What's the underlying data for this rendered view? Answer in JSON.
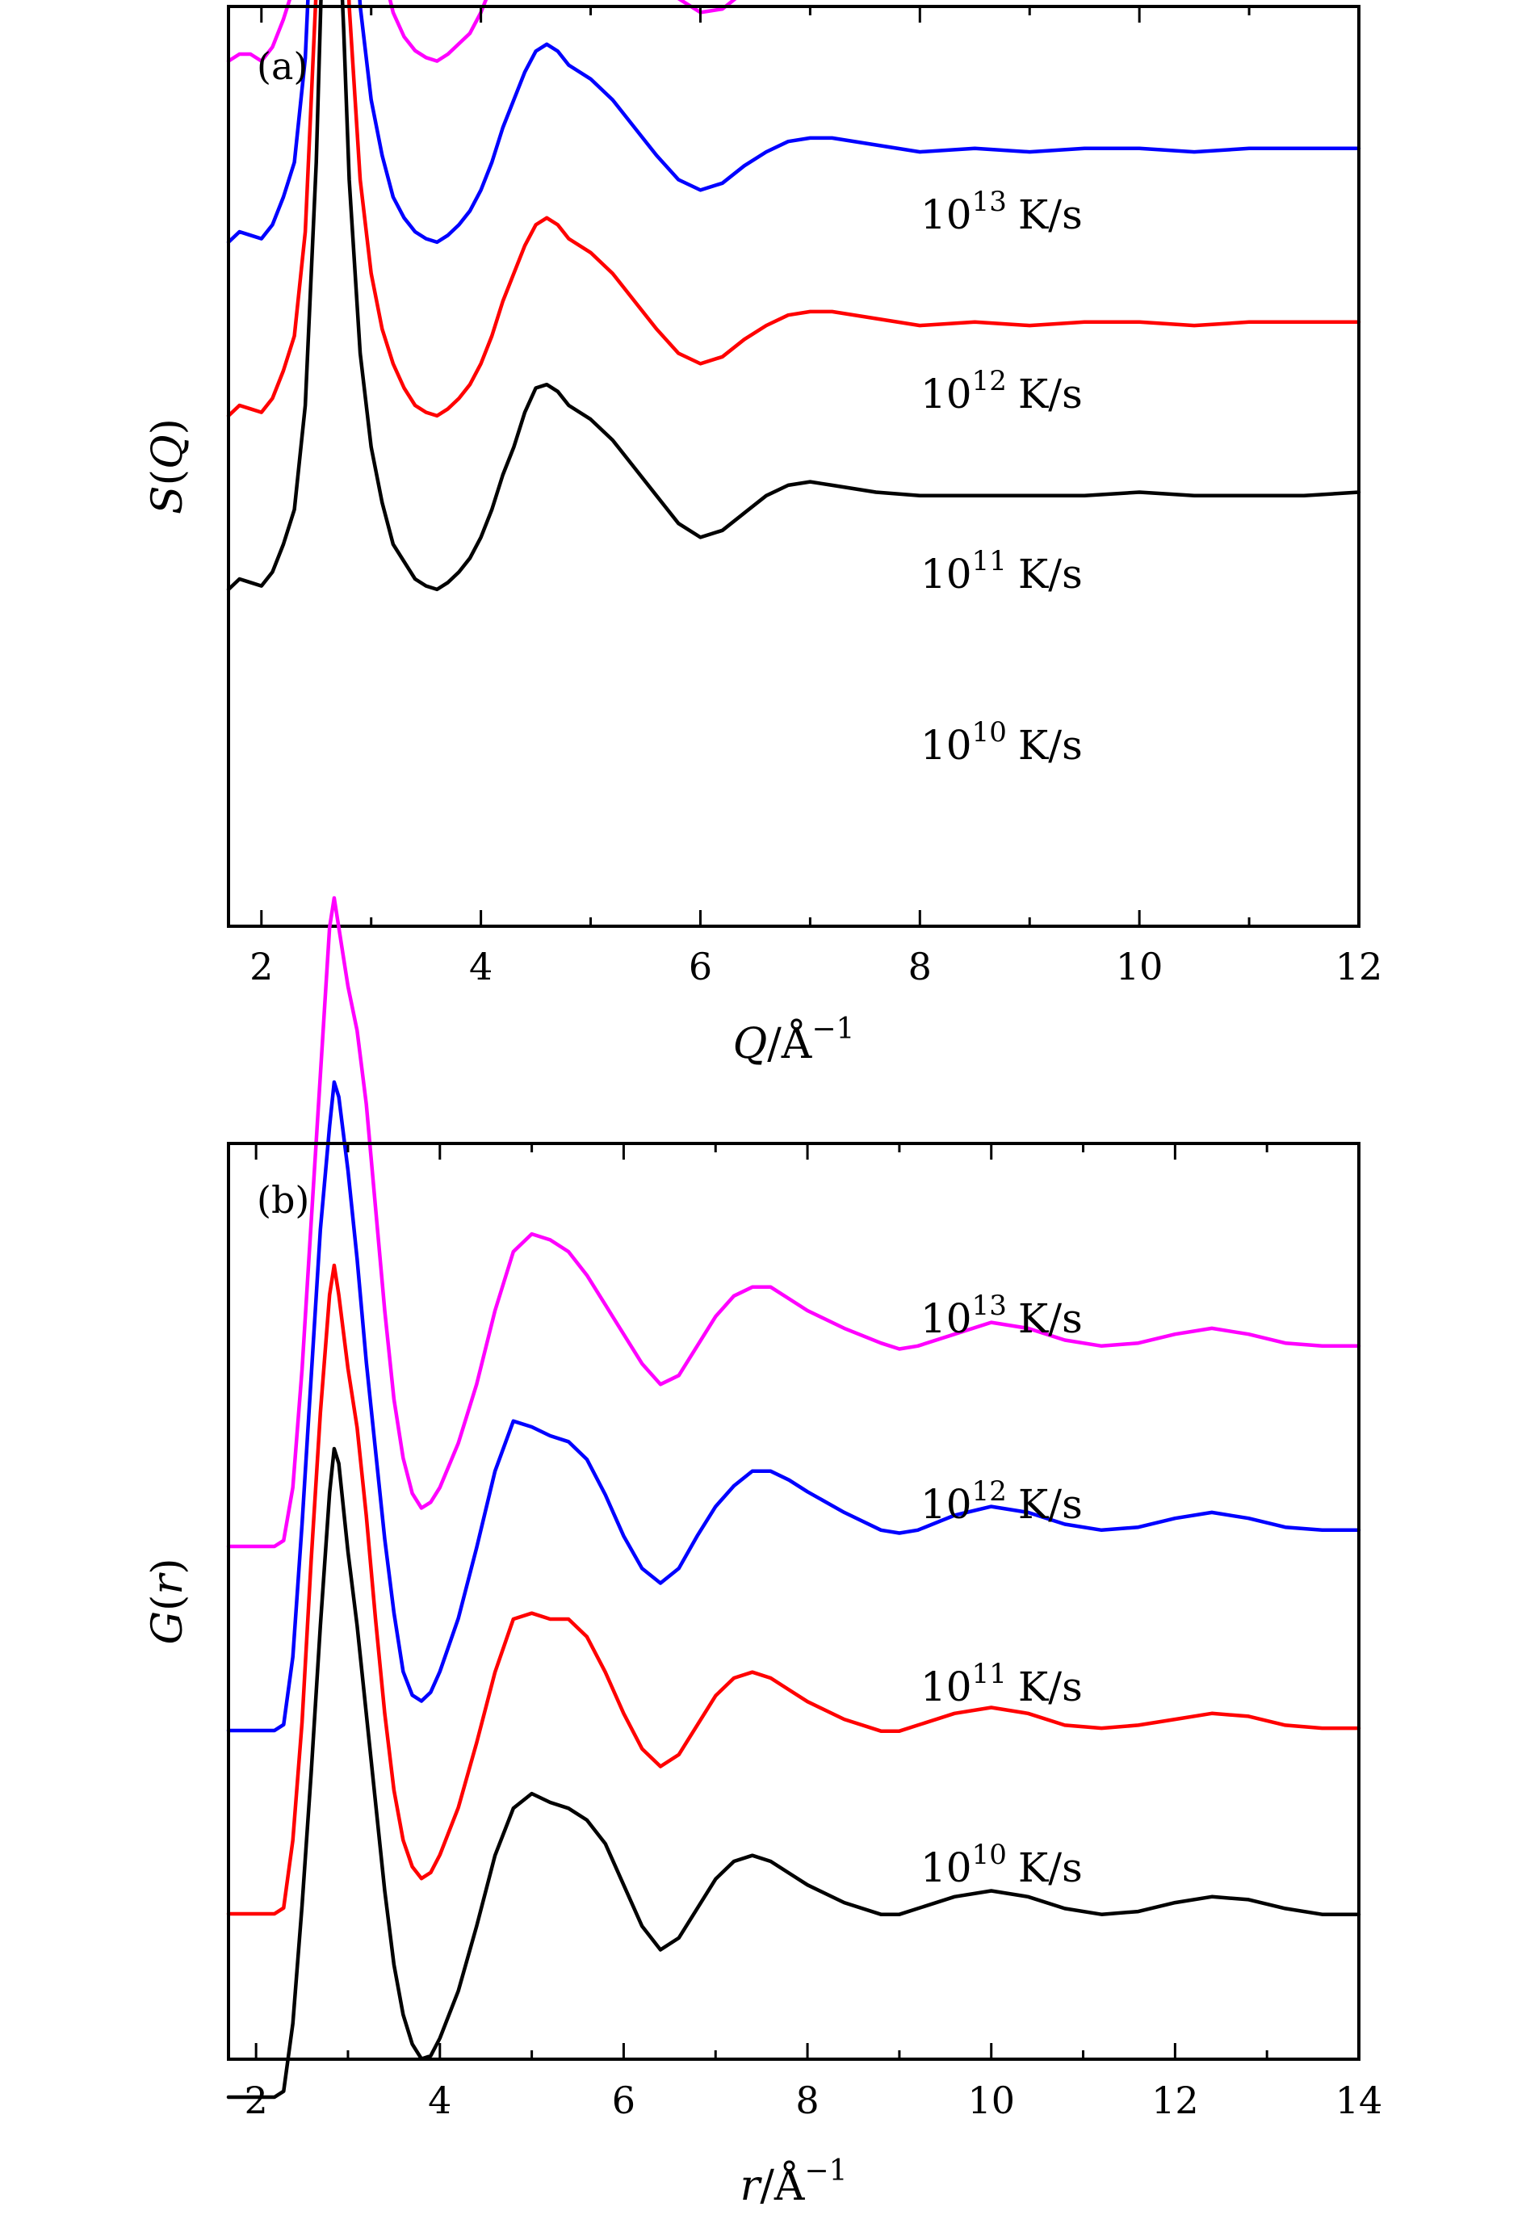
{
  "chart_data": [
    {
      "type": "line",
      "panel_label": "(a)",
      "xlabel": {
        "var": "Q",
        "unit": "/Å",
        "exp": "−1"
      },
      "ylabel": {
        "func": "S",
        "var": "Q"
      },
      "xlim": [
        1.7,
        12
      ],
      "x_ticks": [
        2,
        4,
        6,
        8,
        10,
        12
      ],
      "x_minor_step": 1,
      "y_ticks_visible": false,
      "grid": false,
      "stacked_offset": true,
      "series": [
        {
          "name": "10¹³ K/s",
          "label_base": "10",
          "label_exp": "13",
          "label_unit": "K/s",
          "color": "#ff00ff",
          "x": [
            1.7,
            1.8,
            1.9,
            2.0,
            2.1,
            2.2,
            2.3,
            2.4,
            2.5,
            2.55,
            2.6,
            2.65,
            2.7,
            2.75,
            2.8,
            2.9,
            3.0,
            3.1,
            3.2,
            3.3,
            3.4,
            3.5,
            3.6,
            3.7,
            3.8,
            3.9,
            4.0,
            4.1,
            4.2,
            4.3,
            4.4,
            4.5,
            4.6,
            4.7,
            4.8,
            5.0,
            5.2,
            5.4,
            5.6,
            5.8,
            6.0,
            6.2,
            6.4,
            6.6,
            6.8,
            7.0,
            7.2,
            7.6,
            8.0,
            8.5,
            9.0,
            9.5,
            10.0,
            10.5,
            11.0,
            11.5,
            12.0
          ],
          "y": [
            0.98,
            1.0,
            1.0,
            0.98,
            1.02,
            1.1,
            1.2,
            1.5,
            2.2,
            2.75,
            3.05,
            3.1,
            2.95,
            2.6,
            2.15,
            1.65,
            1.38,
            1.25,
            1.12,
            1.05,
            1.01,
            0.99,
            0.98,
            1.0,
            1.03,
            1.06,
            1.12,
            1.2,
            1.3,
            1.4,
            1.48,
            1.55,
            1.57,
            1.55,
            1.52,
            1.47,
            1.42,
            1.33,
            1.24,
            1.16,
            1.12,
            1.13,
            1.18,
            1.24,
            1.28,
            1.29,
            1.28,
            1.26,
            1.24,
            1.25,
            1.24,
            1.25,
            1.25,
            1.24,
            1.25,
            1.25,
            1.25
          ]
        },
        {
          "name": "10¹² K/s",
          "label_base": "10",
          "label_exp": "12",
          "label_unit": "K/s",
          "color": "#0000ff",
          "x": [
            1.7,
            1.8,
            1.9,
            2.0,
            2.1,
            2.2,
            2.3,
            2.4,
            2.5,
            2.55,
            2.6,
            2.65,
            2.7,
            2.75,
            2.8,
            2.9,
            3.0,
            3.1,
            3.2,
            3.3,
            3.4,
            3.5,
            3.6,
            3.7,
            3.8,
            3.9,
            4.0,
            4.1,
            4.2,
            4.3,
            4.4,
            4.5,
            4.6,
            4.7,
            4.8,
            5.0,
            5.2,
            5.4,
            5.6,
            5.8,
            6.0,
            6.2,
            6.4,
            6.6,
            6.8,
            7.0,
            7.2,
            7.6,
            8.0,
            8.5,
            9.0,
            9.5,
            10.0,
            10.5,
            11.0,
            11.5,
            12.0
          ],
          "y": [
            0.97,
            1.0,
            0.99,
            0.98,
            1.02,
            1.1,
            1.2,
            1.5,
            2.2,
            2.75,
            3.05,
            3.1,
            2.95,
            2.58,
            2.15,
            1.65,
            1.38,
            1.22,
            1.1,
            1.04,
            1.0,
            0.98,
            0.97,
            0.99,
            1.02,
            1.06,
            1.12,
            1.2,
            1.3,
            1.38,
            1.46,
            1.52,
            1.54,
            1.52,
            1.48,
            1.44,
            1.38,
            1.3,
            1.22,
            1.15,
            1.12,
            1.14,
            1.19,
            1.23,
            1.26,
            1.27,
            1.27,
            1.25,
            1.23,
            1.24,
            1.23,
            1.24,
            1.24,
            1.23,
            1.24,
            1.24,
            1.24
          ]
        },
        {
          "name": "10¹¹ K/s",
          "label_base": "10",
          "label_exp": "11",
          "label_unit": "K/s",
          "color": "#ff0000",
          "x": [
            1.7,
            1.8,
            1.9,
            2.0,
            2.1,
            2.2,
            2.3,
            2.4,
            2.5,
            2.55,
            2.6,
            2.65,
            2.7,
            2.75,
            2.8,
            2.9,
            3.0,
            3.1,
            3.2,
            3.3,
            3.4,
            3.5,
            3.6,
            3.7,
            3.8,
            3.9,
            4.0,
            4.1,
            4.2,
            4.3,
            4.4,
            4.5,
            4.6,
            4.7,
            4.8,
            5.0,
            5.2,
            5.4,
            5.6,
            5.8,
            6.0,
            6.2,
            6.4,
            6.6,
            6.8,
            7.0,
            7.2,
            7.6,
            8.0,
            8.5,
            9.0,
            9.5,
            10.0,
            10.5,
            11.0,
            11.5,
            12.0
          ],
          "y": [
            0.97,
            1.0,
            0.99,
            0.98,
            1.02,
            1.1,
            1.2,
            1.5,
            2.2,
            2.75,
            3.05,
            3.1,
            2.95,
            2.58,
            2.15,
            1.65,
            1.38,
            1.22,
            1.12,
            1.05,
            1.0,
            0.98,
            0.97,
            0.99,
            1.02,
            1.06,
            1.12,
            1.2,
            1.3,
            1.38,
            1.46,
            1.52,
            1.54,
            1.52,
            1.48,
            1.44,
            1.38,
            1.3,
            1.22,
            1.15,
            1.12,
            1.14,
            1.19,
            1.23,
            1.26,
            1.27,
            1.27,
            1.25,
            1.23,
            1.24,
            1.23,
            1.24,
            1.24,
            1.23,
            1.24,
            1.24,
            1.24
          ]
        },
        {
          "name": "10¹⁰ K/s",
          "label_base": "10",
          "label_exp": "10",
          "label_unit": "K/s",
          "color": "#000000",
          "x": [
            1.7,
            1.8,
            1.9,
            2.0,
            2.1,
            2.2,
            2.3,
            2.4,
            2.5,
            2.55,
            2.6,
            2.65,
            2.7,
            2.75,
            2.8,
            2.9,
            3.0,
            3.1,
            3.2,
            3.3,
            3.4,
            3.5,
            3.6,
            3.7,
            3.8,
            3.9,
            4.0,
            4.1,
            4.2,
            4.3,
            4.4,
            4.5,
            4.6,
            4.7,
            4.8,
            5.0,
            5.2,
            5.4,
            5.6,
            5.8,
            6.0,
            6.2,
            6.4,
            6.6,
            6.8,
            7.0,
            7.2,
            7.6,
            8.0,
            8.5,
            9.0,
            9.5,
            10.0,
            10.5,
            11.0,
            11.5,
            12.0
          ],
          "y": [
            0.97,
            1.0,
            0.99,
            0.98,
            1.02,
            1.1,
            1.2,
            1.5,
            2.2,
            2.75,
            3.05,
            3.1,
            2.95,
            2.58,
            2.15,
            1.65,
            1.38,
            1.22,
            1.1,
            1.05,
            1.0,
            0.98,
            0.97,
            0.99,
            1.02,
            1.06,
            1.12,
            1.2,
            1.3,
            1.38,
            1.48,
            1.55,
            1.56,
            1.54,
            1.5,
            1.46,
            1.4,
            1.32,
            1.24,
            1.16,
            1.12,
            1.14,
            1.19,
            1.24,
            1.27,
            1.28,
            1.27,
            1.25,
            1.24,
            1.24,
            1.24,
            1.24,
            1.25,
            1.24,
            1.24,
            1.24,
            1.25
          ]
        }
      ]
    },
    {
      "type": "line",
      "panel_label": "(b)",
      "xlabel": {
        "var": "r",
        "unit": "/Å",
        "exp": "−1"
      },
      "ylabel": {
        "func": "G",
        "var": "r"
      },
      "xlim": [
        1.7,
        14
      ],
      "x_ticks": [
        2,
        4,
        6,
        8,
        10,
        12,
        14
      ],
      "x_minor_step": 1,
      "y_ticks_visible": false,
      "grid": false,
      "stacked_offset": true,
      "series": [
        {
          "name": "10¹³ K/s",
          "label_base": "10",
          "label_exp": "13",
          "label_unit": "K/s",
          "color": "#ff00ff",
          "x": [
            1.7,
            2.0,
            2.2,
            2.3,
            2.4,
            2.5,
            2.6,
            2.7,
            2.8,
            2.85,
            2.9,
            3.0,
            3.1,
            3.2,
            3.3,
            3.4,
            3.5,
            3.6,
            3.7,
            3.8,
            3.9,
            4.0,
            4.2,
            4.4,
            4.6,
            4.8,
            5.0,
            5.2,
            5.4,
            5.6,
            5.8,
            6.0,
            6.2,
            6.4,
            6.6,
            6.8,
            7.0,
            7.2,
            7.4,
            7.6,
            7.8,
            8.0,
            8.4,
            8.8,
            9.0,
            9.2,
            9.6,
            10.0,
            10.4,
            10.8,
            11.2,
            11.6,
            12.0,
            12.4,
            12.8,
            13.2,
            13.6,
            14.0
          ],
          "y": [
            0,
            0,
            0,
            0.02,
            0.2,
            0.6,
            1.1,
            1.6,
            2.1,
            2.2,
            2.1,
            1.9,
            1.75,
            1.5,
            1.15,
            0.8,
            0.5,
            0.3,
            0.18,
            0.13,
            0.15,
            0.2,
            0.35,
            0.55,
            0.8,
            1.0,
            1.06,
            1.04,
            1.0,
            0.92,
            0.82,
            0.72,
            0.62,
            0.55,
            0.58,
            0.68,
            0.78,
            0.85,
            0.88,
            0.88,
            0.84,
            0.8,
            0.74,
            0.69,
            0.67,
            0.68,
            0.72,
            0.76,
            0.74,
            0.7,
            0.68,
            0.69,
            0.72,
            0.74,
            0.72,
            0.69,
            0.68,
            0.68
          ]
        },
        {
          "name": "10¹² K/s",
          "label_base": "10",
          "label_exp": "12",
          "label_unit": "K/s",
          "color": "#0000ff",
          "x": [
            1.7,
            2.0,
            2.2,
            2.3,
            2.4,
            2.5,
            2.6,
            2.7,
            2.8,
            2.85,
            2.9,
            3.0,
            3.1,
            3.2,
            3.3,
            3.4,
            3.5,
            3.6,
            3.7,
            3.8,
            3.9,
            4.0,
            4.2,
            4.4,
            4.6,
            4.8,
            5.0,
            5.2,
            5.4,
            5.6,
            5.8,
            6.0,
            6.2,
            6.4,
            6.6,
            6.8,
            7.0,
            7.2,
            7.4,
            7.6,
            7.8,
            8.0,
            8.4,
            8.8,
            9.0,
            9.2,
            9.6,
            10.0,
            10.4,
            10.8,
            11.2,
            11.6,
            12.0,
            12.4,
            12.8,
            13.2,
            13.6,
            14.0
          ],
          "y": [
            0,
            0,
            0,
            0.02,
            0.25,
            0.7,
            1.2,
            1.7,
            2.05,
            2.2,
            2.15,
            1.9,
            1.6,
            1.25,
            0.95,
            0.65,
            0.4,
            0.2,
            0.12,
            0.1,
            0.13,
            0.2,
            0.38,
            0.62,
            0.88,
            1.05,
            1.03,
            1.0,
            0.98,
            0.92,
            0.8,
            0.66,
            0.55,
            0.5,
            0.55,
            0.66,
            0.76,
            0.83,
            0.88,
            0.88,
            0.85,
            0.81,
            0.74,
            0.68,
            0.67,
            0.68,
            0.73,
            0.76,
            0.74,
            0.7,
            0.68,
            0.69,
            0.72,
            0.74,
            0.72,
            0.69,
            0.68,
            0.68
          ]
        },
        {
          "name": "10¹¹ K/s",
          "label_base": "10",
          "label_exp": "11",
          "label_unit": "K/s",
          "color": "#ff0000",
          "x": [
            1.7,
            2.0,
            2.2,
            2.3,
            2.4,
            2.5,
            2.6,
            2.7,
            2.8,
            2.85,
            2.9,
            3.0,
            3.1,
            3.2,
            3.3,
            3.4,
            3.5,
            3.6,
            3.7,
            3.8,
            3.9,
            4.0,
            4.2,
            4.4,
            4.6,
            4.8,
            5.0,
            5.2,
            5.4,
            5.6,
            5.8,
            6.0,
            6.2,
            6.4,
            6.6,
            6.8,
            7.0,
            7.2,
            7.4,
            7.6,
            7.8,
            8.0,
            8.4,
            8.8,
            9.0,
            9.2,
            9.6,
            10.0,
            10.4,
            10.8,
            11.2,
            11.6,
            12.0,
            12.4,
            12.8,
            13.2,
            13.6,
            14.0
          ],
          "y": [
            0,
            0,
            0,
            0.02,
            0.25,
            0.65,
            1.2,
            1.7,
            2.1,
            2.2,
            2.1,
            1.85,
            1.65,
            1.35,
            1.0,
            0.68,
            0.42,
            0.25,
            0.16,
            0.12,
            0.14,
            0.2,
            0.36,
            0.58,
            0.82,
            1.0,
            1.02,
            1.0,
            1.0,
            0.94,
            0.82,
            0.68,
            0.56,
            0.5,
            0.54,
            0.64,
            0.74,
            0.8,
            0.82,
            0.8,
            0.76,
            0.72,
            0.66,
            0.62,
            0.62,
            0.64,
            0.68,
            0.7,
            0.68,
            0.64,
            0.63,
            0.64,
            0.66,
            0.68,
            0.67,
            0.64,
            0.63,
            0.63
          ]
        },
        {
          "name": "10¹⁰ K/s",
          "label_base": "10",
          "label_exp": "10",
          "label_unit": "K/s",
          "color": "#000000",
          "x": [
            1.7,
            2.0,
            2.2,
            2.3,
            2.4,
            2.5,
            2.6,
            2.7,
            2.8,
            2.85,
            2.9,
            3.0,
            3.1,
            3.2,
            3.3,
            3.4,
            3.5,
            3.6,
            3.7,
            3.8,
            3.9,
            4.0,
            4.2,
            4.4,
            4.6,
            4.8,
            5.0,
            5.2,
            5.4,
            5.6,
            5.8,
            6.0,
            6.2,
            6.4,
            6.6,
            6.8,
            7.0,
            7.2,
            7.4,
            7.6,
            7.8,
            8.0,
            8.4,
            8.8,
            9.0,
            9.2,
            9.6,
            10.0,
            10.4,
            10.8,
            11.2,
            11.6,
            12.0,
            12.4,
            12.8,
            13.2,
            13.6,
            14.0
          ],
          "y": [
            0,
            0,
            0,
            0.02,
            0.25,
            0.65,
            1.1,
            1.6,
            2.05,
            2.2,
            2.15,
            1.85,
            1.6,
            1.3,
            1.0,
            0.7,
            0.45,
            0.28,
            0.18,
            0.13,
            0.14,
            0.2,
            0.36,
            0.58,
            0.82,
            0.98,
            1.03,
            1.0,
            0.98,
            0.94,
            0.86,
            0.72,
            0.58,
            0.5,
            0.54,
            0.64,
            0.74,
            0.8,
            0.82,
            0.8,
            0.76,
            0.72,
            0.66,
            0.62,
            0.62,
            0.64,
            0.68,
            0.7,
            0.68,
            0.64,
            0.62,
            0.63,
            0.66,
            0.68,
            0.67,
            0.64,
            0.62,
            0.62
          ]
        }
      ]
    }
  ]
}
